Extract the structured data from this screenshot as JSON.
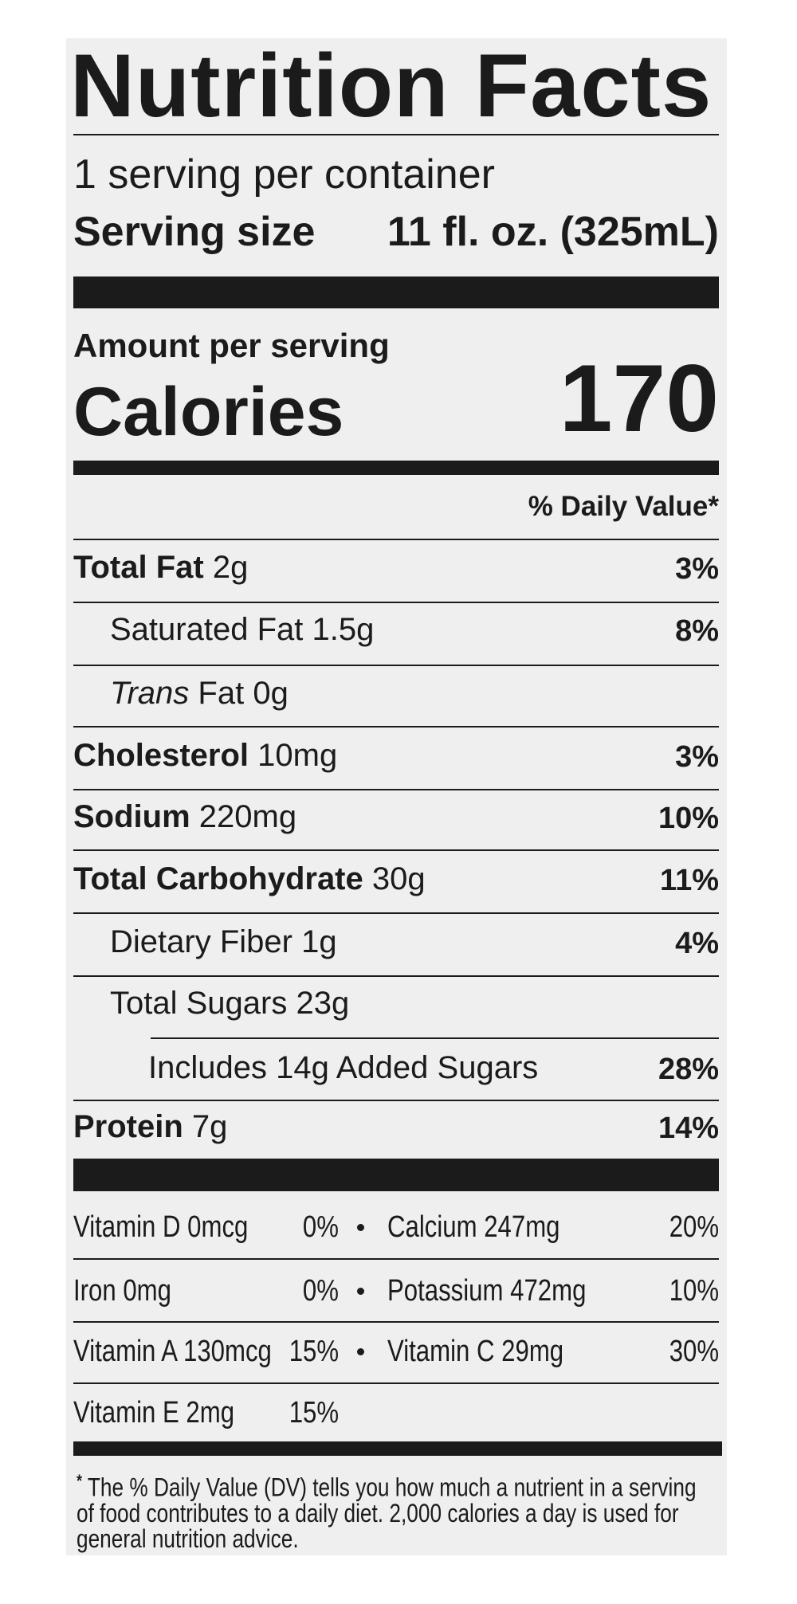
{
  "title": "Nutrition Facts",
  "servings": "1 serving per container",
  "serving_size": {
    "label": "Serving size",
    "value": "11 fl. oz. (325mL)"
  },
  "amount_per_serving": "Amount per serving",
  "calories": {
    "label": "Calories",
    "value": 170
  },
  "daily_value_header": "% Daily Value*",
  "nutrients": [
    {
      "name": "Total Fat",
      "amount": "2g",
      "dv": "3%"
    },
    {
      "name": "Saturated Fat",
      "amount": "1.5g",
      "dv": "8%"
    },
    {
      "prefix": "Trans",
      "name": "Fat",
      "amount": "0g"
    },
    {
      "name": "Cholesterol",
      "amount": "10mg",
      "dv": "3%"
    },
    {
      "name": "Sodium",
      "amount": "220mg",
      "dv": "10%"
    },
    {
      "name": "Total Carbohydrate",
      "amount": "30g",
      "dv": "11%"
    },
    {
      "name": "Dietary Fiber",
      "amount": "1g",
      "dv": "4%"
    },
    {
      "name": "Total Sugars",
      "amount": "23g"
    },
    {
      "name": "Includes 14g Added Sugars",
      "dv": "28%"
    },
    {
      "name": "Protein",
      "amount": "7g",
      "dv": "14%"
    }
  ],
  "vitamins": [
    [
      {
        "name": "Vitamin D 0mcg",
        "dv": "0%"
      },
      {
        "name": "Calcium 247mg",
        "dv": "20%"
      }
    ],
    [
      {
        "name": "Iron 0mg",
        "dv": "0%"
      },
      {
        "name": "Potassium 472mg",
        "dv": "10%"
      }
    ],
    [
      {
        "name": "Vitamin A 130mcg",
        "dv": "15%"
      },
      {
        "name": "Vitamin C 29mg",
        "dv": "30%"
      }
    ],
    [
      {
        "name": "Vitamin E 2mg",
        "dv": "15%"
      }
    ]
  ],
  "footnote": {
    "mark": "*",
    "text": "The % Daily Value (DV) tells you how much a nutrient in a serving of food contributes to a daily diet. 2,000 calories a day is used for general nutrition advice."
  }
}
